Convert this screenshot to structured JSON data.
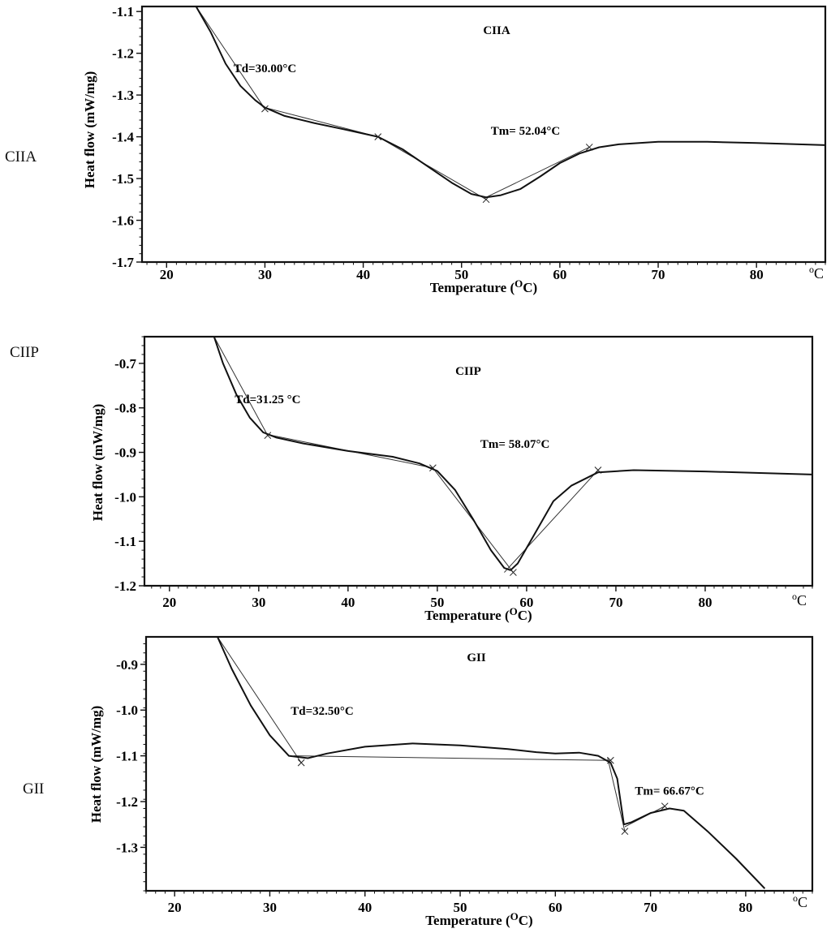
{
  "figure": {
    "side_labels": [
      "CIIA",
      "CIIP",
      "GII"
    ]
  },
  "chart_data": [
    {
      "type": "line",
      "title": "CIIA",
      "xlabel": "Temperature (",
      "xlabel_unit": "C)",
      "ylabel": "Heat flow (mW/mg)",
      "unit_label": "C",
      "xlim": [
        17.5,
        87
      ],
      "ylim": [
        -1.7,
        -1.088
      ],
      "xticks": [
        20,
        30,
        40,
        50,
        60,
        70,
        80
      ],
      "yticks": [
        -1.1,
        -1.2,
        -1.3,
        -1.4,
        -1.5,
        -1.6,
        -1.7
      ],
      "ytick_labels": [
        "-1.1",
        "-1.2",
        "-1.3",
        "-1.4",
        "-1.5",
        "-1.6",
        "-1.7"
      ],
      "annotations": [
        {
          "text": "Td=30.00°C",
          "x": 30.0,
          "y": -1.245
        },
        {
          "text": "Tm= 52.04°C",
          "x": 56.5,
          "y": -1.395
        }
      ],
      "curve": [
        [
          23.0,
          -1.088
        ],
        [
          24.5,
          -1.15
        ],
        [
          26.0,
          -1.225
        ],
        [
          27.5,
          -1.278
        ],
        [
          29.0,
          -1.312
        ],
        [
          30.0,
          -1.33
        ],
        [
          32.0,
          -1.35
        ],
        [
          35.0,
          -1.367
        ],
        [
          38.0,
          -1.382
        ],
        [
          41.5,
          -1.4
        ],
        [
          44.0,
          -1.43
        ],
        [
          46.5,
          -1.47
        ],
        [
          49.0,
          -1.51
        ],
        [
          51.0,
          -1.537
        ],
        [
          52.5,
          -1.545
        ],
        [
          54.0,
          -1.54
        ],
        [
          56.0,
          -1.525
        ],
        [
          58.0,
          -1.495
        ],
        [
          60.0,
          -1.463
        ],
        [
          62.0,
          -1.44
        ],
        [
          64.0,
          -1.425
        ],
        [
          66.0,
          -1.418
        ],
        [
          70.0,
          -1.412
        ],
        [
          75.0,
          -1.412
        ],
        [
          80.0,
          -1.415
        ],
        [
          87.0,
          -1.42
        ]
      ],
      "tangents": [
        [
          [
            23.0,
            -1.088
          ],
          [
            30.0,
            -1.333
          ]
        ],
        [
          [
            30.0,
            -1.33
          ],
          [
            41.5,
            -1.4
          ]
        ],
        [
          [
            41.5,
            -1.4
          ],
          [
            52.5,
            -1.55
          ]
        ],
        [
          [
            52.5,
            -1.545
          ],
          [
            63.0,
            -1.425
          ]
        ]
      ]
    },
    {
      "type": "line",
      "title": "CIIP",
      "xlabel": "Temperature (",
      "xlabel_unit": "C)",
      "ylabel": "Heat flow (mW/mg)",
      "unit_label": "C",
      "xlim": [
        17.2,
        92
      ],
      "ylim": [
        -1.2,
        -0.64
      ],
      "xticks": [
        20,
        30,
        40,
        50,
        60,
        70,
        80
      ],
      "yticks": [
        -0.7,
        -0.8,
        -0.9,
        -1.0,
        -1.1,
        -1.2
      ],
      "ytick_labels": [
        "-0.7",
        "-0.8",
        "-0.9",
        "-1.0",
        "-1.1",
        "-1.2"
      ],
      "annotations": [
        {
          "text": "Td=31.25 °C",
          "x": 31.0,
          "y": -0.79
        },
        {
          "text": "Tm= 58.07°C",
          "x": 58.7,
          "y": -0.89
        }
      ],
      "curve": [
        [
          25.0,
          -0.64
        ],
        [
          26.0,
          -0.7
        ],
        [
          27.5,
          -0.77
        ],
        [
          29.0,
          -0.822
        ],
        [
          30.5,
          -0.855
        ],
        [
          32.0,
          -0.867
        ],
        [
          35.0,
          -0.88
        ],
        [
          40.0,
          -0.897
        ],
        [
          45.0,
          -0.91
        ],
        [
          48.0,
          -0.925
        ],
        [
          50.0,
          -0.942
        ],
        [
          52.0,
          -0.985
        ],
        [
          54.0,
          -1.05
        ],
        [
          56.0,
          -1.12
        ],
        [
          57.5,
          -1.16
        ],
        [
          58.2,
          -1.165
        ],
        [
          59.0,
          -1.15
        ],
        [
          61.0,
          -1.08
        ],
        [
          63.0,
          -1.01
        ],
        [
          65.0,
          -0.975
        ],
        [
          68.0,
          -0.945
        ],
        [
          72.0,
          -0.94
        ],
        [
          80.0,
          -0.943
        ],
        [
          92.0,
          -0.95
        ]
      ],
      "tangents": [
        [
          [
            25.0,
            -0.64
          ],
          [
            31.0,
            -0.862
          ]
        ],
        [
          [
            31.0,
            -0.86
          ],
          [
            49.5,
            -0.935
          ]
        ],
        [
          [
            49.5,
            -0.935
          ],
          [
            58.5,
            -1.17
          ]
        ],
        [
          [
            57.5,
            -1.17
          ],
          [
            68.0,
            -0.94
          ]
        ]
      ]
    },
    {
      "type": "line",
      "title": "GII",
      "xlabel": "Temperature (",
      "xlabel_unit": "C)",
      "ylabel": "Heat flow (mW/mg)",
      "unit_label": "C",
      "xlim": [
        17.0,
        87
      ],
      "ylim": [
        -1.395,
        -0.84
      ],
      "xticks": [
        20,
        30,
        40,
        50,
        60,
        70,
        80
      ],
      "yticks": [
        -0.9,
        -1.0,
        -1.1,
        -1.2,
        -1.3
      ],
      "ytick_labels": [
        "-0.9",
        "-1.0",
        "-1.1",
        "-1.2",
        "-1.3"
      ],
      "annotations": [
        {
          "text": "Td=32.50°C",
          "x": 35.5,
          "y": -1.01
        },
        {
          "text": "Tm= 66.67°C",
          "x": 72.0,
          "y": -1.185
        }
      ],
      "curve": [
        [
          24.5,
          -0.84
        ],
        [
          26.0,
          -0.91
        ],
        [
          28.0,
          -0.99
        ],
        [
          30.0,
          -1.055
        ],
        [
          32.0,
          -1.1
        ],
        [
          34.0,
          -1.105
        ],
        [
          36.0,
          -1.095
        ],
        [
          40.0,
          -1.08
        ],
        [
          45.0,
          -1.073
        ],
        [
          50.0,
          -1.077
        ],
        [
          55.0,
          -1.085
        ],
        [
          58.0,
          -1.092
        ],
        [
          60.0,
          -1.095
        ],
        [
          62.5,
          -1.093
        ],
        [
          64.5,
          -1.1
        ],
        [
          65.8,
          -1.115
        ],
        [
          66.5,
          -1.15
        ],
        [
          67.2,
          -1.25
        ],
        [
          68.0,
          -1.245
        ],
        [
          70.0,
          -1.225
        ],
        [
          72.0,
          -1.215
        ],
        [
          73.5,
          -1.22
        ],
        [
          76.0,
          -1.265
        ],
        [
          79.0,
          -1.325
        ],
        [
          82.0,
          -1.39
        ]
      ],
      "tangents": [
        [
          [
            24.5,
            -0.84
          ],
          [
            33.3,
            -1.115
          ]
        ],
        [
          [
            32.5,
            -1.1
          ],
          [
            65.8,
            -1.11
          ]
        ],
        [
          [
            65.5,
            -1.105
          ],
          [
            67.3,
            -1.265
          ]
        ],
        [
          [
            67.3,
            -1.255
          ],
          [
            71.5,
            -1.21
          ]
        ]
      ]
    }
  ]
}
